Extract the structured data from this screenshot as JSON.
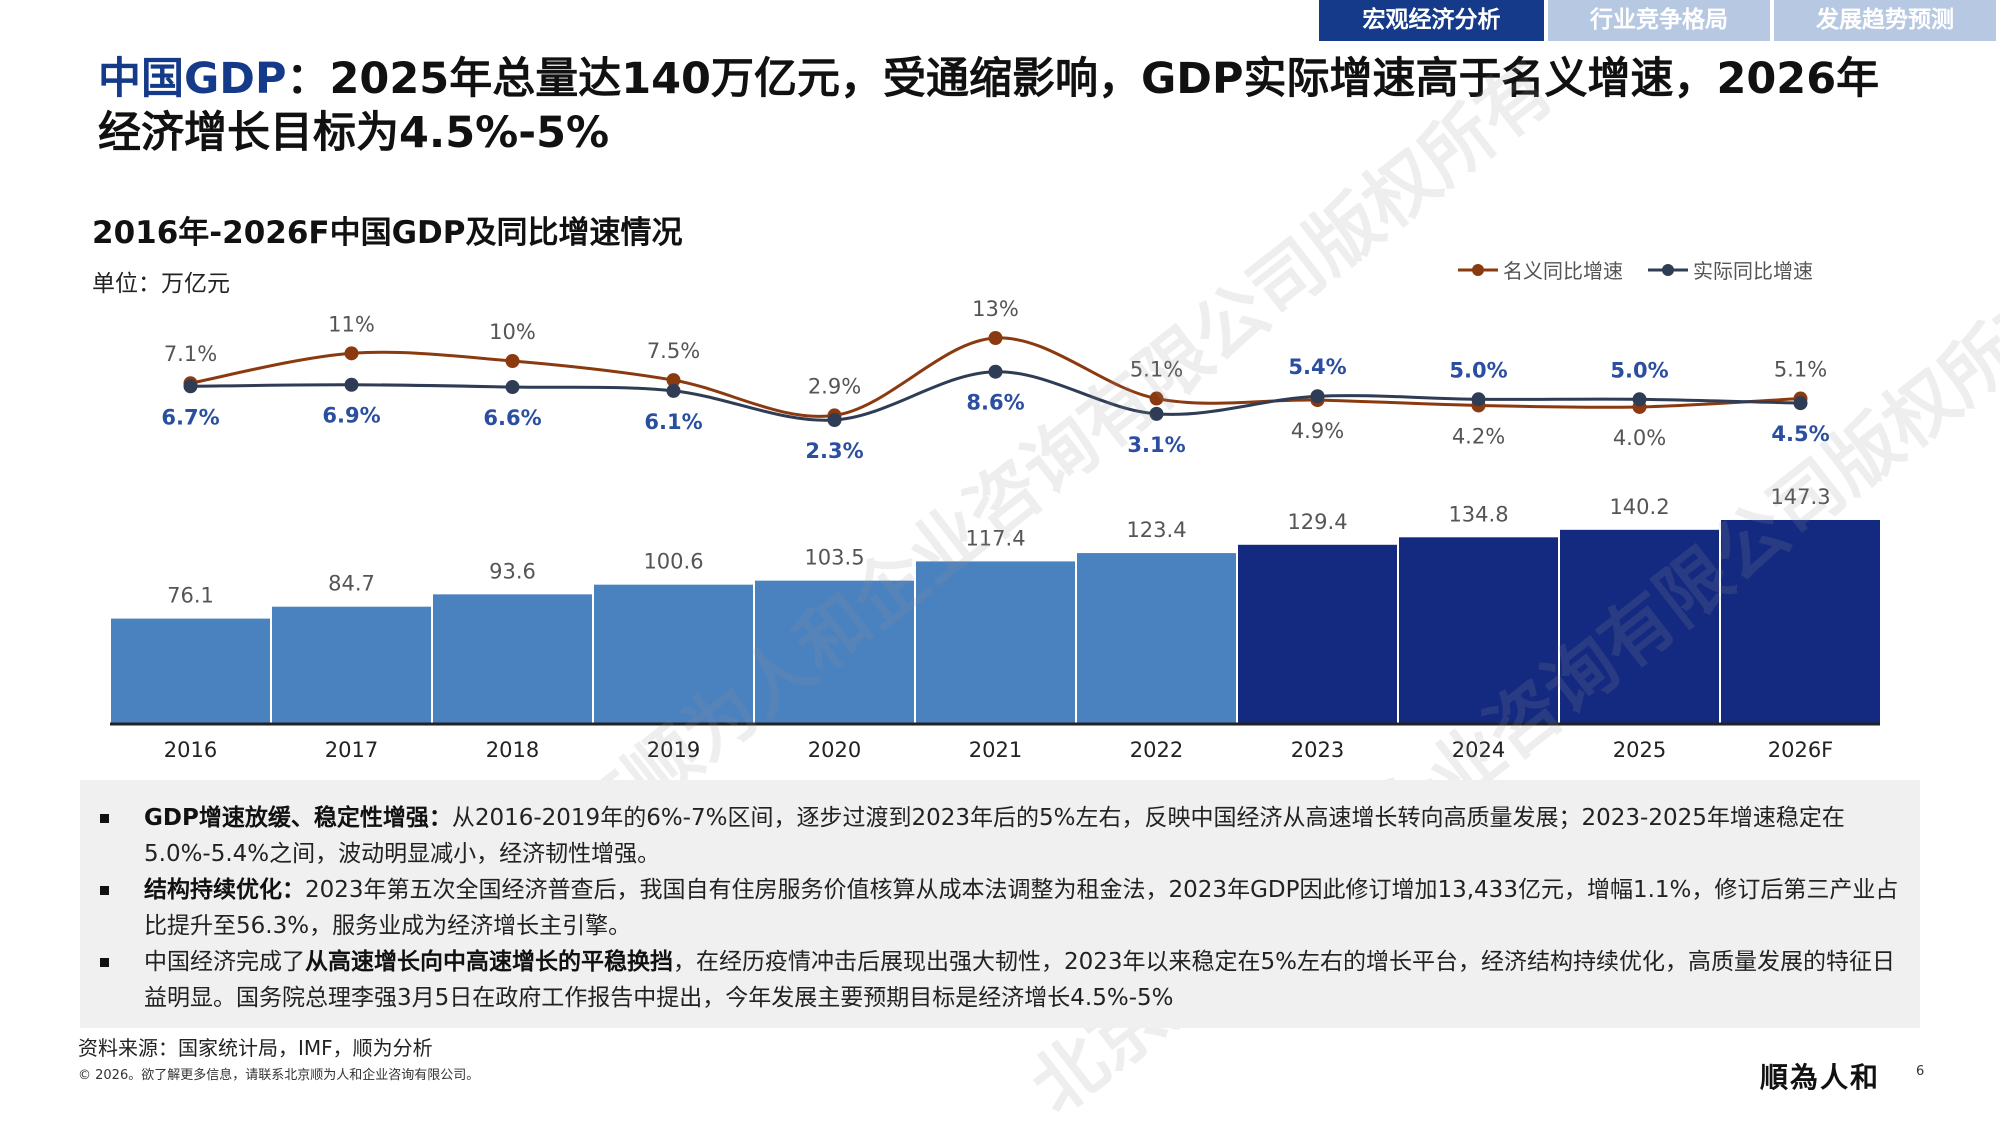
{
  "tabs": [
    {
      "label": "宏观经济分析",
      "active": true
    },
    {
      "label": "行业竞争格局",
      "active": false
    },
    {
      "label": "发展趋势预测",
      "active": false
    }
  ],
  "headline": {
    "accent": "中国GDP",
    "rest": "：2025年总量达140万亿元，受通缩影响，GDP实际增速高于名义增速，2026年经济增长目标为4.5%-5%"
  },
  "watermark": "北京顺为人和企业咨询有限公司版权所有",
  "chart_data": {
    "type": "bar",
    "title": "2016年-2026F中国GDP及同比增速情况",
    "unit": "单位：万亿元",
    "categories": [
      "2016",
      "2017",
      "2018",
      "2019",
      "2020",
      "2021",
      "2022",
      "2023",
      "2024",
      "2025",
      "2026F"
    ],
    "bar_series": {
      "values": [
        76.1,
        84.7,
        93.6,
        100.6,
        103.5,
        117.4,
        123.4,
        129.4,
        134.8,
        140.2,
        147.3
      ],
      "labels": [
        "76.1",
        "84.7",
        "93.6",
        "100.6",
        "103.5",
        "117.4",
        "123.4",
        "129.4",
        "134.8",
        "140.2",
        "147.3"
      ],
      "colors": [
        "#4a81bf",
        "#4a81bf",
        "#4a81bf",
        "#4a81bf",
        "#4a81bf",
        "#4a81bf",
        "#4a81bf",
        "#142a80",
        "#142a80",
        "#142a80",
        "#142a80"
      ]
    },
    "line_series": [
      {
        "name": "名义同比增速",
        "color": "#8b3a10",
        "values": [
          7.1,
          11,
          10,
          7.5,
          2.9,
          13,
          5.1,
          4.9,
          4.2,
          4.0,
          5.1
        ],
        "labels": [
          "7.1%",
          "11%",
          "10%",
          "7.5%",
          "2.9%",
          "13%",
          "5.1%",
          "4.9%",
          "4.2%",
          "4.0%",
          "5.1%"
        ]
      },
      {
        "name": "实际同比增速",
        "color": "#2e3d55",
        "values": [
          6.7,
          6.9,
          6.6,
          6.1,
          2.3,
          8.6,
          3.1,
          5.4,
          5.0,
          5.0,
          4.5
        ],
        "labels": [
          "6.7%",
          "6.9%",
          "6.6%",
          "6.1%",
          "2.3%",
          "8.6%",
          "3.1%",
          "5.4%",
          "5.0%",
          "5.0%",
          "4.5%"
        ]
      }
    ],
    "legend_position": "top-right",
    "grid": false
  },
  "notes": [
    {
      "bold": "GDP增速放缓、稳定性增强：",
      "bold_prefix": true,
      "text": "从2016-2019年的6%-7%区间，逐步过渡到2023年后的5%左右，反映中国经济从高速增长转向高质量发展；2023-2025年增速稳定在5.0%-5.4%之间，波动明显减小，经济韧性增强。"
    },
    {
      "bold": "结构持续优化：",
      "bold_prefix": true,
      "text": "2023年第五次全国经济普查后，我国自有住房服务价值核算从成本法调整为租金法，2023年GDP因此修订增加13,433亿元，增幅1.1%，修订后第三产业占比提升至56.3%，服务业成为经济增长主引擎。"
    },
    {
      "pre": "中国经济完成了",
      "bold": "从高速增长向中高速增长的平稳换挡",
      "text": "，在经历疫情冲击后展现出强大韧性，2023年以来稳定在5%左右的增长平台，经济结构持续优化，高质量发展的特征日益明显。国务院总理李强3月5日在政府工作报告中提出，今年发展主要预期目标是经济增长4.5%-5%"
    }
  ],
  "source": "资料来源：国家统计局，IMF，顺为分析",
  "copyright": "© 2026。欲了解更多信息，请联系北京顺为人和企业咨询有限公司。",
  "logo": "順為人和",
  "page_number": "6"
}
